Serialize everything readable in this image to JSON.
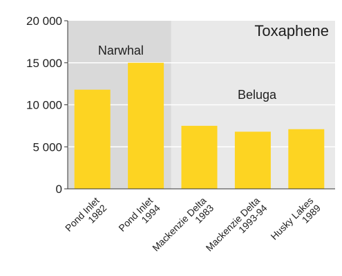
{
  "chart_data": {
    "type": "bar",
    "title": "Toxaphene",
    "xlabel": "",
    "ylabel": "",
    "ylim": [
      0,
      20000
    ],
    "yticks": [
      0,
      5000,
      10000,
      15000,
      20000
    ],
    "ytick_labels": [
      "0",
      "5 000",
      "10 000",
      "15 000",
      "20 000"
    ],
    "categories": [
      [
        "Pond Inlet",
        "1982"
      ],
      [
        "Pond Inlet",
        "1994"
      ],
      [
        "Mackenzie Delta",
        "1983"
      ],
      [
        "Mackenzie Delta",
        "1993-94"
      ],
      [
        "Husky Lakes",
        "1989"
      ]
    ],
    "values": [
      11800,
      15000,
      7500,
      6800,
      7100
    ],
    "groups": [
      {
        "label": "Narwhal",
        "categories": [
          0,
          1
        ],
        "color": "#d9d9d9"
      },
      {
        "label": "Beluga",
        "categories": [
          2,
          3,
          4
        ],
        "color": "#e9e9e9"
      }
    ],
    "bar_color": "#fdd422",
    "grid": true,
    "grid_color": "#ffffff"
  }
}
